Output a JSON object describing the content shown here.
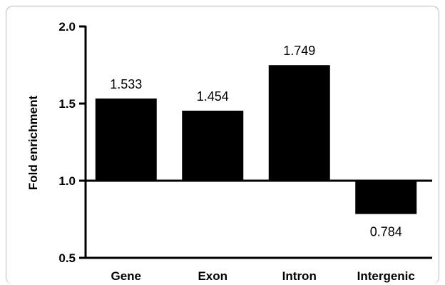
{
  "chart_data": {
    "type": "bar",
    "categories": [
      "Gene",
      "Exon",
      "Intron",
      "Intergenic"
    ],
    "values": [
      1.533,
      1.454,
      1.749,
      0.784
    ],
    "value_labels": [
      "1.533",
      "1.454",
      "1.749",
      "0.784"
    ],
    "baseline": 1.0,
    "ylabel": "Fold enrichment",
    "ylim": [
      0.5,
      2.0
    ],
    "yticks": [
      0.5,
      1.0,
      1.5,
      2.0
    ],
    "ytick_labels": [
      "0.5",
      "1.0",
      "1.5",
      "2.0"
    ],
    "grid": false,
    "bar_color": "#000000"
  }
}
